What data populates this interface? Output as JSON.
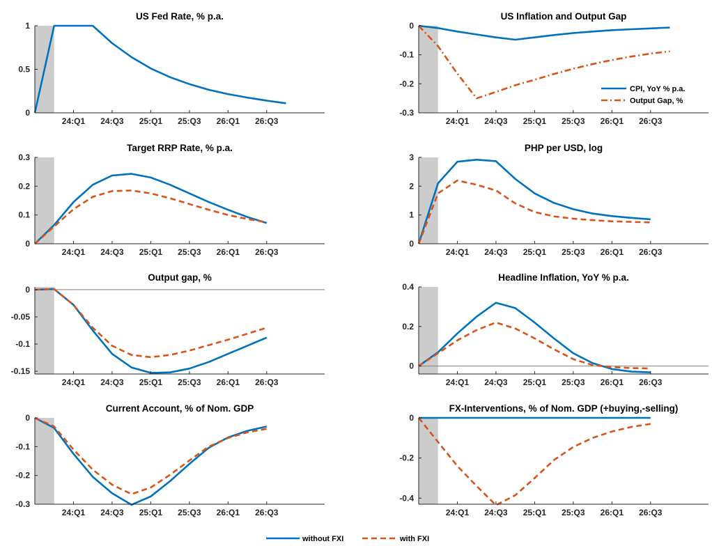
{
  "chart_data": [
    {
      "type": "line",
      "title": "US Fed Rate, % p.a.",
      "xticks": [
        "24:Q1",
        "24:Q3",
        "25:Q1",
        "25:Q3",
        "26:Q1",
        "26:Q3"
      ],
      "ylim": [
        0,
        1
      ],
      "yticks": [
        0,
        0.5,
        1
      ],
      "ytick_labels": [
        "0",
        "0.5",
        "1"
      ],
      "shaded_period": [
        0,
        1
      ],
      "zero_line": false,
      "series": [
        {
          "key": "without",
          "values": [
            0,
            1,
            1,
            1,
            0.8,
            0.64,
            0.51,
            0.41,
            0.33,
            0.265,
            0.215,
            0.175,
            0.14,
            0.11
          ]
        }
      ]
    },
    {
      "type": "line",
      "title": "US Inflation and Output Gap",
      "xticks": [
        "24:Q1",
        "24:Q3",
        "25:Q1",
        "25:Q3",
        "26:Q1",
        "26:Q3"
      ],
      "ylim": [
        -0.3,
        0
      ],
      "yticks": [
        -0.3,
        -0.2,
        -0.1,
        0
      ],
      "ytick_labels": [
        "-0.3",
        "-0.2",
        "-0.1",
        "0"
      ],
      "shaded_period": [
        0,
        1
      ],
      "zero_line": false,
      "series": [
        {
          "key": "without",
          "name": "CPI, YoY % p.a.",
          "values": [
            0,
            -0.008,
            -0.02,
            -0.03,
            -0.04,
            -0.048,
            -0.04,
            -0.032,
            -0.025,
            -0.02,
            -0.015,
            -0.012,
            -0.009,
            -0.006
          ]
        },
        {
          "key": "dashdot",
          "name": "Output Gap, %",
          "values": [
            0,
            -0.07,
            -0.165,
            -0.25,
            -0.228,
            -0.205,
            -0.186,
            -0.166,
            -0.148,
            -0.132,
            -0.118,
            -0.106,
            -0.096,
            -0.088
          ]
        }
      ],
      "legend": {
        "location": "bottom-right"
      }
    },
    {
      "type": "line",
      "title": "Target RRP Rate, % p.a.",
      "xticks": [
        "24:Q1",
        "24:Q3",
        "25:Q1",
        "25:Q3",
        "26:Q1",
        "26:Q3"
      ],
      "ylim": [
        0,
        0.3
      ],
      "yticks": [
        0,
        0.1,
        0.2,
        0.3
      ],
      "ytick_labels": [
        "0",
        "0.1",
        "0.2",
        "0.3"
      ],
      "shaded_period": [
        0,
        1
      ],
      "zero_line": false,
      "series": [
        {
          "key": "without",
          "values": [
            0,
            0.065,
            0.145,
            0.205,
            0.237,
            0.243,
            0.23,
            0.205,
            0.175,
            0.145,
            0.118,
            0.093,
            0.072
          ]
        },
        {
          "key": "with",
          "values": [
            0,
            0.06,
            0.12,
            0.163,
            0.183,
            0.185,
            0.175,
            0.158,
            0.138,
            0.118,
            0.1,
            0.086,
            0.075
          ]
        }
      ]
    },
    {
      "type": "line",
      "title": "PHP per USD, log",
      "xticks": [
        "24:Q1",
        "24:Q3",
        "25:Q1",
        "25:Q3",
        "26:Q1",
        "26:Q3"
      ],
      "ylim": [
        0,
        3
      ],
      "yticks": [
        0,
        1,
        2,
        3
      ],
      "ytick_labels": [
        "0",
        "1",
        "2",
        "3"
      ],
      "shaded_period": [
        0,
        1
      ],
      "zero_line": false,
      "series": [
        {
          "key": "without",
          "values": [
            0,
            2.1,
            2.85,
            2.92,
            2.87,
            2.25,
            1.75,
            1.42,
            1.2,
            1.05,
            0.96,
            0.9,
            0.85
          ]
        },
        {
          "key": "with",
          "values": [
            0,
            1.75,
            2.2,
            2.05,
            1.85,
            1.4,
            1.1,
            0.95,
            0.87,
            0.82,
            0.78,
            0.76,
            0.74
          ]
        }
      ]
    },
    {
      "type": "line",
      "title": "Output gap, %",
      "xticks": [
        "24:Q1",
        "24:Q3",
        "25:Q1",
        "25:Q3",
        "26:Q1",
        "26:Q3"
      ],
      "ylim": [
        -0.155,
        0.005
      ],
      "yticks": [
        -0.15,
        -0.1,
        -0.05,
        0
      ],
      "ytick_labels": [
        "-0.15",
        "-0.1",
        "-0.05",
        "0"
      ],
      "shaded_period": [
        0,
        1
      ],
      "zero_line": true,
      "series": [
        {
          "key": "without",
          "values": [
            0,
            0.001,
            -0.028,
            -0.075,
            -0.118,
            -0.143,
            -0.153,
            -0.152,
            -0.145,
            -0.133,
            -0.118,
            -0.103,
            -0.088
          ]
        },
        {
          "key": "with",
          "values": [
            0,
            0.001,
            -0.028,
            -0.07,
            -0.103,
            -0.12,
            -0.124,
            -0.12,
            -0.112,
            -0.102,
            -0.092,
            -0.081,
            -0.07
          ]
        }
      ]
    },
    {
      "type": "line",
      "title": "Headline Inflation, YoY % p.a.",
      "xticks": [
        "24:Q1",
        "24:Q3",
        "25:Q1",
        "25:Q3",
        "26:Q1",
        "26:Q3"
      ],
      "ylim": [
        -0.04,
        0.4
      ],
      "yticks": [
        0,
        0.2,
        0.4
      ],
      "ytick_labels": [
        "0",
        "0.2",
        "0.4"
      ],
      "shaded_period": [
        0,
        1
      ],
      "zero_line": true,
      "series": [
        {
          "key": "without",
          "values": [
            0,
            0.07,
            0.165,
            0.25,
            0.32,
            0.293,
            0.22,
            0.14,
            0.065,
            0.015,
            -0.015,
            -0.028,
            -0.032
          ]
        },
        {
          "key": "with",
          "values": [
            0,
            0.065,
            0.13,
            0.182,
            0.22,
            0.19,
            0.14,
            0.085,
            0.035,
            0.005,
            -0.005,
            -0.01,
            -0.012
          ]
        }
      ]
    },
    {
      "type": "line",
      "title": "Current Account, % of Nom. GDP",
      "xticks": [
        "24:Q1",
        "24:Q3",
        "25:Q1",
        "25:Q3",
        "26:Q1",
        "26:Q3"
      ],
      "ylim": [
        -0.3,
        0
      ],
      "yticks": [
        -0.3,
        -0.2,
        -0.1,
        0
      ],
      "ytick_labels": [
        "-0.3",
        "-0.2",
        "-0.1",
        "0"
      ],
      "shaded_period": [
        0,
        1
      ],
      "zero_line": false,
      "series": [
        {
          "key": "without",
          "values": [
            0,
            -0.035,
            -0.125,
            -0.205,
            -0.262,
            -0.302,
            -0.273,
            -0.22,
            -0.16,
            -0.104,
            -0.068,
            -0.045,
            -0.03
          ]
        },
        {
          "key": "with",
          "values": [
            0,
            -0.03,
            -0.11,
            -0.18,
            -0.232,
            -0.265,
            -0.242,
            -0.198,
            -0.148,
            -0.1,
            -0.07,
            -0.05,
            -0.038
          ]
        }
      ]
    },
    {
      "type": "line",
      "title": "FX-Interventions, % of Nom. GDP (+buying,-selling)",
      "xticks": [
        "24:Q1",
        "24:Q3",
        "25:Q1",
        "25:Q3",
        "26:Q1",
        "26:Q3"
      ],
      "ylim": [
        -0.43,
        0
      ],
      "yticks": [
        -0.4,
        -0.2,
        0
      ],
      "ytick_labels": [
        "-0.4",
        "-0.2",
        "0"
      ],
      "shaded_period": [
        0,
        1
      ],
      "zero_line": false,
      "series": [
        {
          "key": "without",
          "values": [
            0,
            0,
            0,
            0,
            0,
            0,
            0,
            0,
            0,
            0,
            0,
            0,
            0
          ]
        },
        {
          "key": "with",
          "values": [
            0,
            -0.12,
            -0.24,
            -0.34,
            -0.435,
            -0.385,
            -0.3,
            -0.21,
            -0.145,
            -0.1,
            -0.068,
            -0.045,
            -0.03
          ]
        }
      ]
    }
  ],
  "legend": {
    "without_label": "without FXI",
    "with_label": "with FXI"
  },
  "colors": {
    "without": "#0072BD",
    "with": "#D95319",
    "shade": "#cccccc",
    "axis": "#262626"
  }
}
